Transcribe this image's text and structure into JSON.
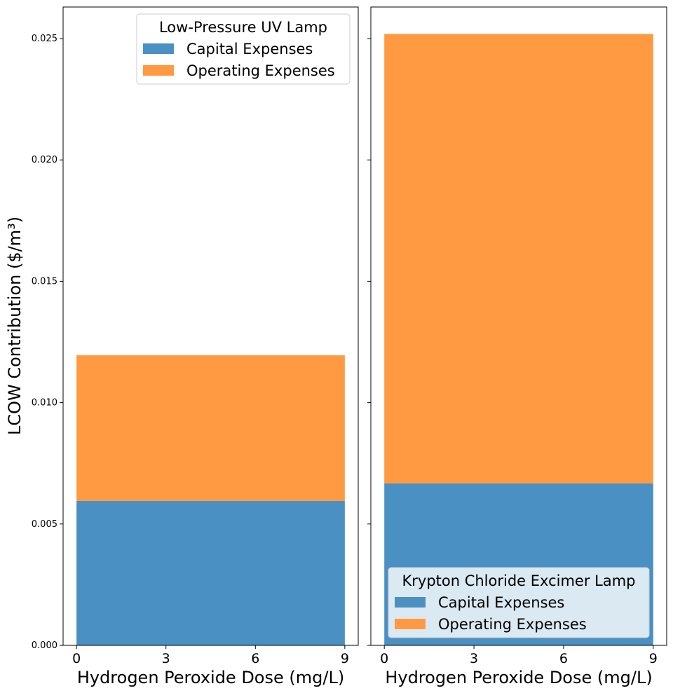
{
  "chart_data": {
    "type": "bar",
    "stacked": true,
    "ylabel": "LCOW Contribution ($/m³)",
    "ylim": [
      0,
      0.0263
    ],
    "yticks": [
      0.0,
      0.005,
      0.01,
      0.015,
      0.02,
      0.025
    ],
    "ytick_labels": [
      "0.000",
      "0.005",
      "0.010",
      "0.015",
      "0.020",
      "0.025"
    ],
    "sharey": true,
    "panels": [
      {
        "legend_title": "Low-Pressure UV Lamp",
        "legend_position": "upper right",
        "xlabel": "Hydrogen Peroxide Dose (mg/L)",
        "xticks": [
          0,
          3,
          6,
          9
        ],
        "xlim": [
          -0.45,
          9.45
        ],
        "x_extent": [
          0,
          9
        ],
        "series": [
          {
            "name": "Capital Expenses",
            "value": 0.00595,
            "color": "#4a90c2"
          },
          {
            "name": "Operating Expenses",
            "value": 0.006,
            "color": "#ff9a42"
          }
        ]
      },
      {
        "legend_title": "Krypton Chloride Excimer Lamp",
        "legend_position": "lower right",
        "xlabel": "Hydrogen Peroxide Dose (mg/L)",
        "xticks": [
          0,
          3,
          6,
          9
        ],
        "xlim": [
          -0.45,
          9.45
        ],
        "x_extent": [
          0,
          9
        ],
        "series": [
          {
            "name": "Capital Expenses",
            "value": 0.00667,
            "color": "#4a90c2"
          },
          {
            "name": "Operating Expenses",
            "value": 0.01852,
            "color": "#ff9a42"
          }
        ]
      }
    ]
  }
}
